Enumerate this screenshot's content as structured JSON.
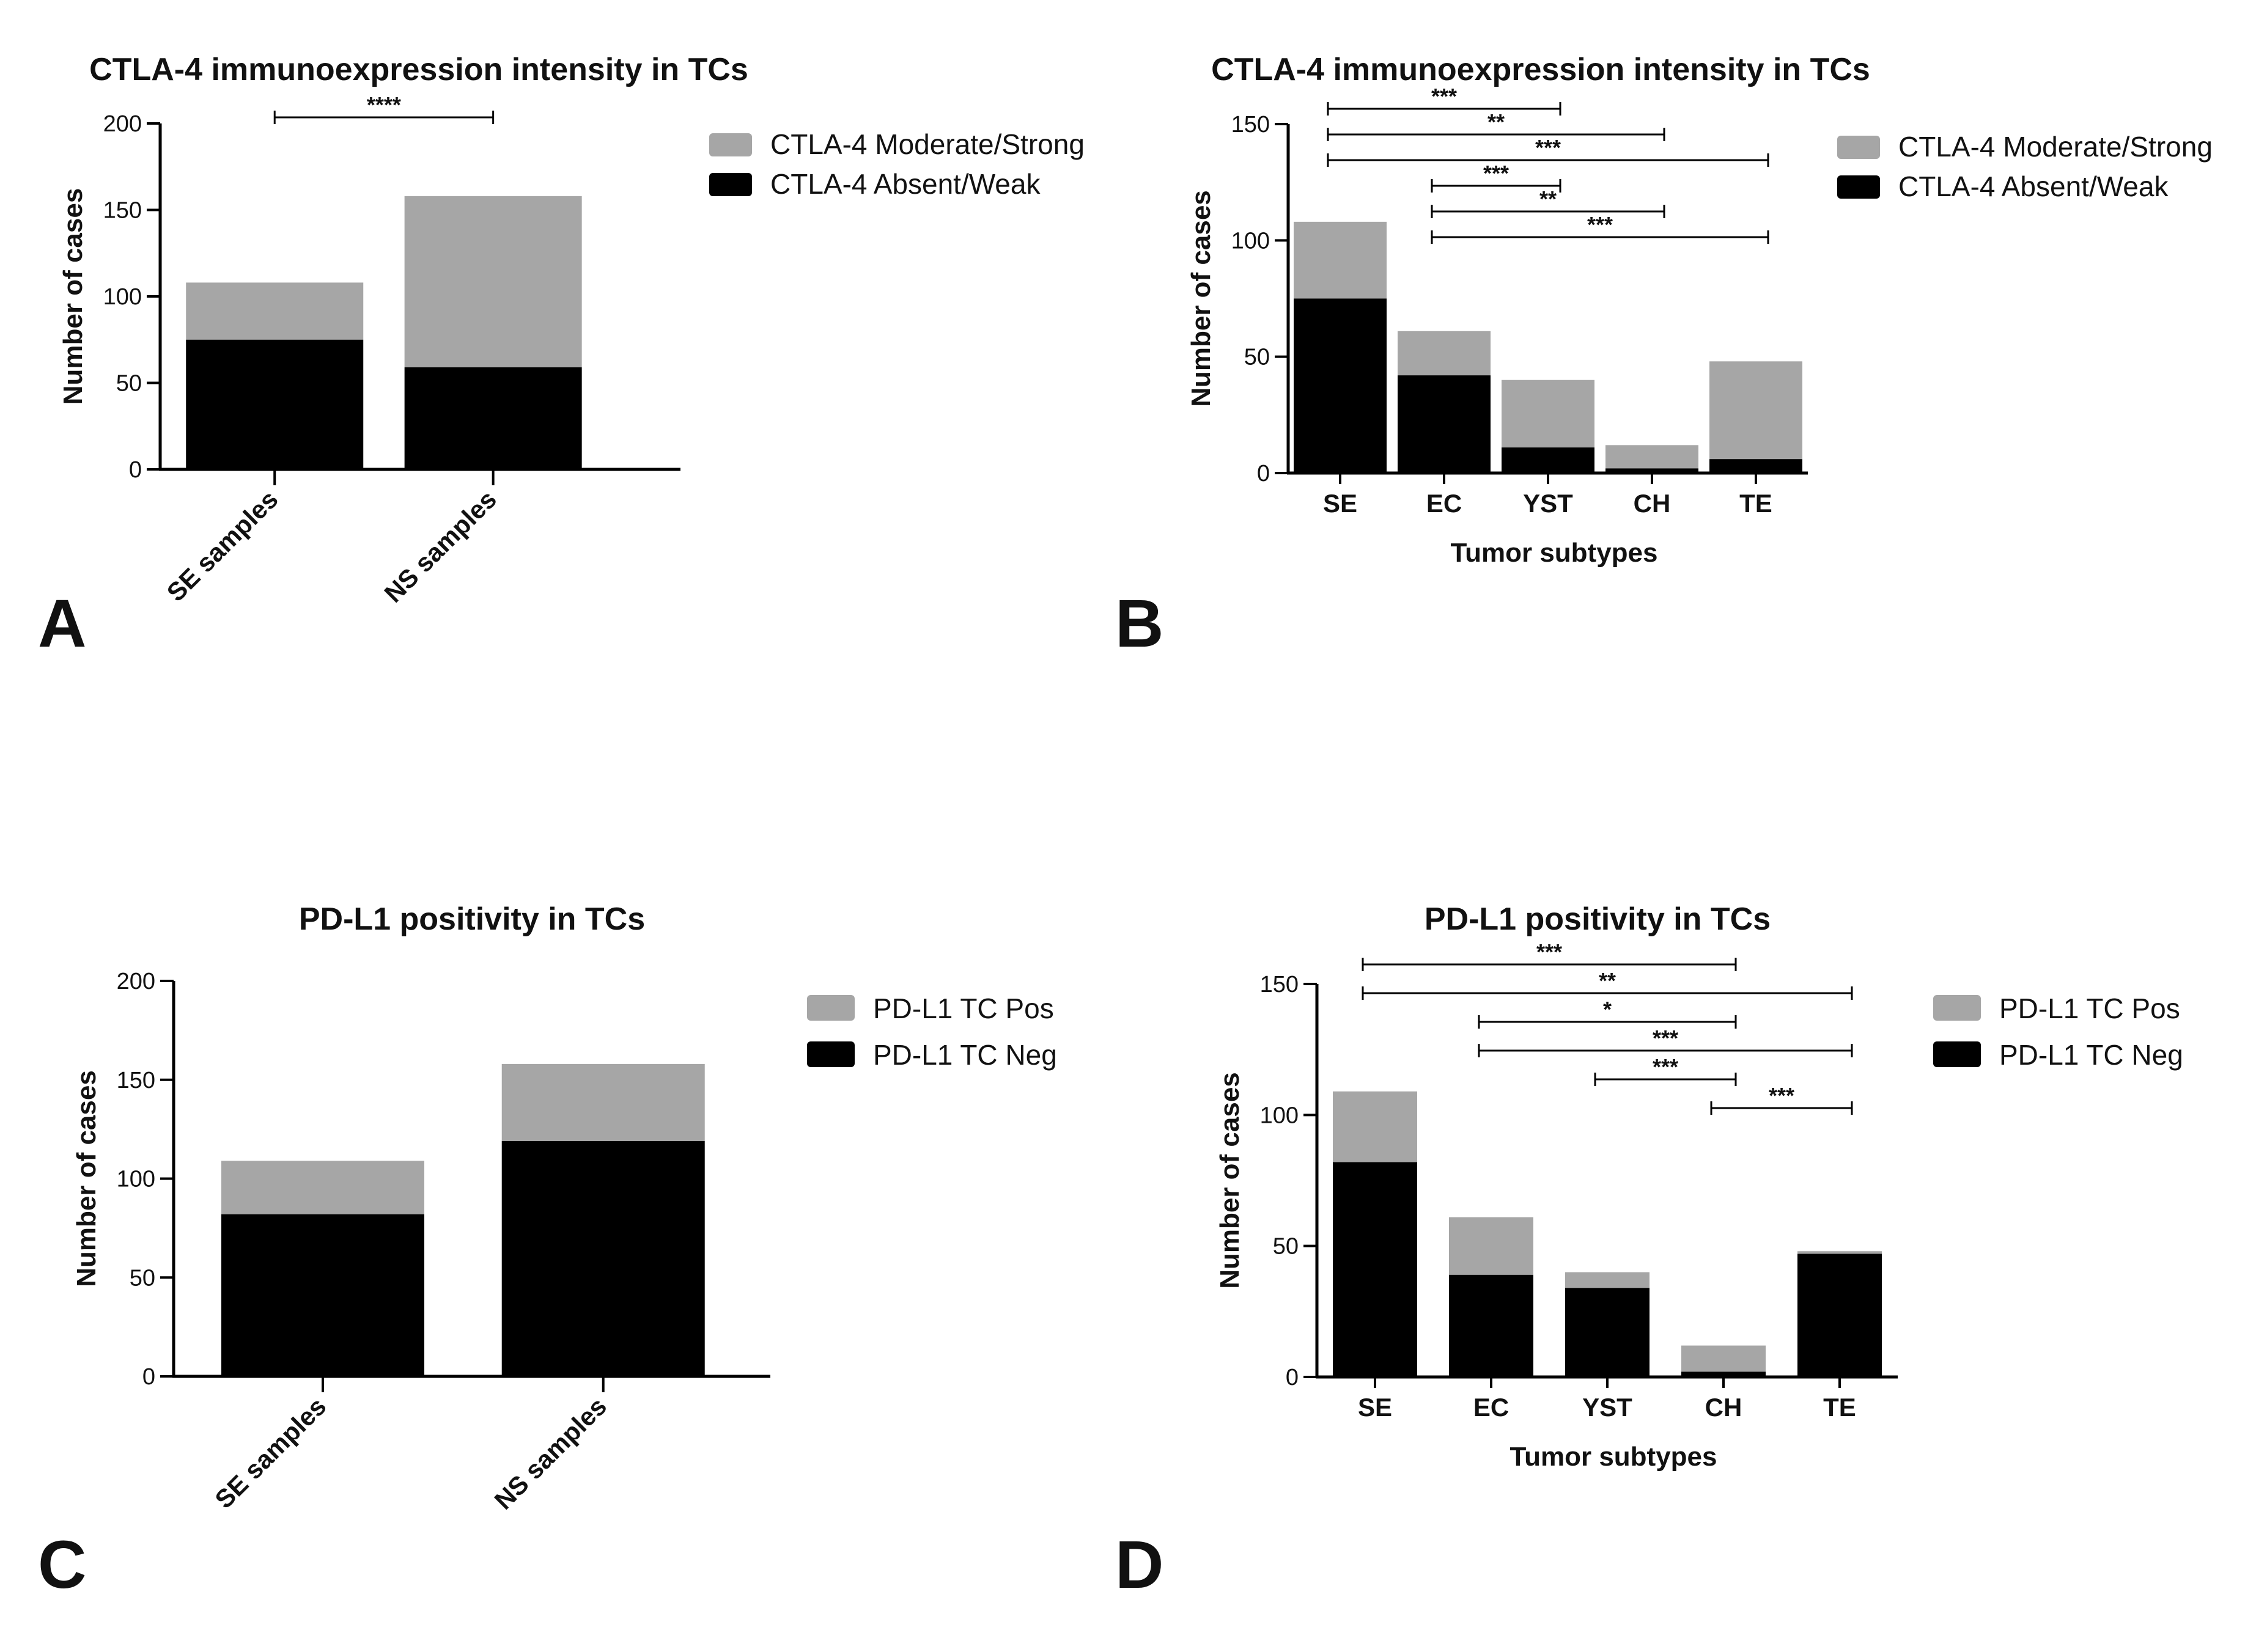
{
  "colors": {
    "top_segment": "#a6a6a6",
    "bottom_segment": "#000000",
    "axis": "#000000"
  },
  "chart_data": [
    {
      "panel": "A",
      "type": "bar",
      "stacked": true,
      "title": "CTLA-4 immunoexpression intensity in TCs",
      "xlabel": "",
      "ylabel": "Number of cases",
      "ylim": [
        0,
        200
      ],
      "yticks": [
        "0",
        "50",
        "100",
        "150",
        "200"
      ],
      "categories": [
        "SE samples",
        "NS samples"
      ],
      "series": [
        {
          "name": "CTLA-4 Absent/Weak",
          "values": [
            75,
            59
          ]
        },
        {
          "name": "CTLA-4 Moderate/Strong",
          "values": [
            33,
            99
          ]
        }
      ],
      "legend": [
        "CTLA-4 Moderate/Strong",
        "CTLA-4 Absent/Weak"
      ],
      "significance": [
        {
          "from": "SE samples",
          "to": "NS samples",
          "label": "****"
        }
      ]
    },
    {
      "panel": "B",
      "type": "bar",
      "stacked": true,
      "title": "CTLA-4 immunoexpression intensity in TCs",
      "xlabel": "Tumor subtypes",
      "ylabel": "Number of cases",
      "ylim": [
        0,
        150
      ],
      "yticks": [
        "0",
        "50",
        "100",
        "150"
      ],
      "categories": [
        "SE",
        "EC",
        "YST",
        "CH",
        "TE"
      ],
      "series": [
        {
          "name": "CTLA-4 Absent/Weak",
          "values": [
            75,
            42,
            11,
            2,
            6
          ]
        },
        {
          "name": "CTLA-4 Moderate/Strong",
          "values": [
            33,
            19,
            29,
            10,
            42
          ]
        }
      ],
      "legend": [
        "CTLA-4 Moderate/Strong",
        "CTLA-4 Absent/Weak"
      ],
      "significance": [
        {
          "from": "SE",
          "to": "YST",
          "label": "***"
        },
        {
          "from": "SE",
          "to": "CH",
          "label": "**"
        },
        {
          "from": "SE",
          "to": "TE",
          "label": "***"
        },
        {
          "from": "EC",
          "to": "YST",
          "label": "***"
        },
        {
          "from": "EC",
          "to": "CH",
          "label": "**"
        },
        {
          "from": "EC",
          "to": "TE",
          "label": "***"
        }
      ]
    },
    {
      "panel": "C",
      "type": "bar",
      "stacked": true,
      "title": "PD-L1 positivity in TCs",
      "xlabel": "",
      "ylabel": "Number of cases",
      "ylim": [
        0,
        200
      ],
      "yticks": [
        "0",
        "50",
        "100",
        "150",
        "200"
      ],
      "categories": [
        "SE samples",
        "NS samples"
      ],
      "series": [
        {
          "name": "PD-L1 TC Neg",
          "values": [
            82,
            119
          ]
        },
        {
          "name": "PD-L1 TC Pos",
          "values": [
            27,
            39
          ]
        }
      ],
      "legend": [
        "PD-L1 TC Pos",
        "PD-L1 TC Neg"
      ],
      "significance": []
    },
    {
      "panel": "D",
      "type": "bar",
      "stacked": true,
      "title": "PD-L1 positivity in TCs",
      "xlabel": "Tumor subtypes",
      "ylabel": "Number of cases",
      "ylim": [
        0,
        150
      ],
      "yticks": [
        "0",
        "50",
        "100",
        "150"
      ],
      "categories": [
        "SE",
        "EC",
        "YST",
        "CH",
        "TE"
      ],
      "series": [
        {
          "name": "PD-L1 TC Neg",
          "values": [
            82,
            39,
            34,
            2,
            47
          ]
        },
        {
          "name": "PD-L1 TC Pos",
          "values": [
            27,
            22,
            6,
            10,
            1
          ]
        }
      ],
      "legend": [
        "PD-L1 TC Pos",
        "PD-L1 TC Neg"
      ],
      "significance": [
        {
          "from": "SE",
          "to": "CH",
          "label": "***"
        },
        {
          "from": "SE",
          "to": "TE",
          "label": "**"
        },
        {
          "from": "EC",
          "to": "CH",
          "label": "*"
        },
        {
          "from": "EC",
          "to": "TE",
          "label": "***"
        },
        {
          "from": "YST",
          "to": "CH",
          "label": "***"
        },
        {
          "from": "CH",
          "to": "TE",
          "label": "***"
        }
      ]
    }
  ]
}
